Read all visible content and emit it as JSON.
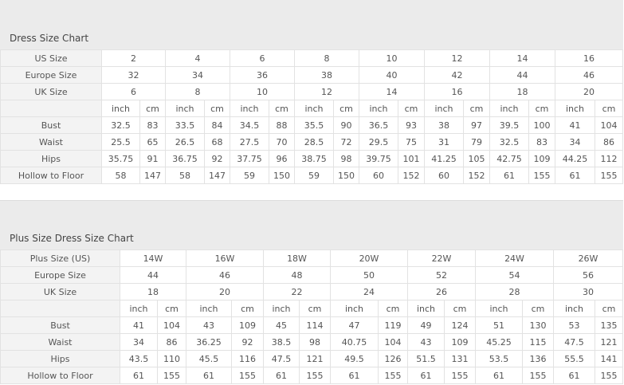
{
  "charts": [
    {
      "title": "Dress Size Chart",
      "size_rows": [
        {
          "label": "US Size",
          "values": [
            "2",
            "4",
            "6",
            "8",
            "10",
            "12",
            "14",
            "16"
          ]
        },
        {
          "label": "Europe Size",
          "values": [
            "32",
            "34",
            "36",
            "38",
            "40",
            "42",
            "44",
            "46"
          ]
        },
        {
          "label": "UK Size",
          "values": [
            "6",
            "8",
            "10",
            "12",
            "14",
            "16",
            "18",
            "20"
          ]
        }
      ],
      "units": [
        "inch",
        "cm"
      ],
      "measure_rows": [
        {
          "label": "Bust",
          "values": [
            "32.5",
            "83",
            "33.5",
            "84",
            "34.5",
            "88",
            "35.5",
            "90",
            "36.5",
            "93",
            "38",
            "97",
            "39.5",
            "100",
            "41",
            "104"
          ]
        },
        {
          "label": "Waist",
          "values": [
            "25.5",
            "65",
            "26.5",
            "68",
            "27.5",
            "70",
            "28.5",
            "72",
            "29.5",
            "75",
            "31",
            "79",
            "32.5",
            "83",
            "34",
            "86"
          ]
        },
        {
          "label": "Hips",
          "values": [
            "35.75",
            "91",
            "36.75",
            "92",
            "37.75",
            "96",
            "38.75",
            "98",
            "39.75",
            "101",
            "41.25",
            "105",
            "42.75",
            "109",
            "44.25",
            "112"
          ]
        },
        {
          "label": "Hollow to Floor",
          "values": [
            "58",
            "147",
            "58",
            "147",
            "59",
            "150",
            "59",
            "150",
            "60",
            "152",
            "60",
            "152",
            "61",
            "155",
            "61",
            "155"
          ]
        }
      ]
    },
    {
      "title": "Plus Size Dress Size Chart",
      "size_rows": [
        {
          "label": "Plus Size (US)",
          "values": [
            "14W",
            "16W",
            "18W",
            "20W",
            "22W",
            "24W",
            "26W"
          ]
        },
        {
          "label": "Europe Size",
          "values": [
            "44",
            "46",
            "48",
            "50",
            "52",
            "54",
            "56"
          ]
        },
        {
          "label": "UK Size",
          "values": [
            "18",
            "20",
            "22",
            "24",
            "26",
            "28",
            "30"
          ]
        }
      ],
      "units": [
        "inch",
        "cm"
      ],
      "measure_rows": [
        {
          "label": "Bust",
          "values": [
            "41",
            "104",
            "43",
            "109",
            "45",
            "114",
            "47",
            "119",
            "49",
            "124",
            "51",
            "130",
            "53",
            "135"
          ]
        },
        {
          "label": "Waist",
          "values": [
            "34",
            "86",
            "36.25",
            "92",
            "38.5",
            "98",
            "40.75",
            "104",
            "43",
            "109",
            "45.25",
            "115",
            "47.5",
            "121"
          ]
        },
        {
          "label": "Hips",
          "values": [
            "43.5",
            "110",
            "45.5",
            "116",
            "47.5",
            "121",
            "49.5",
            "126",
            "51.5",
            "131",
            "53.5",
            "136",
            "55.5",
            "141"
          ]
        },
        {
          "label": "Hollow to Floor",
          "values": [
            "61",
            "155",
            "61",
            "155",
            "61",
            "155",
            "61",
            "155",
            "61",
            "155",
            "61",
            "155",
            "61",
            "155"
          ]
        }
      ]
    }
  ]
}
